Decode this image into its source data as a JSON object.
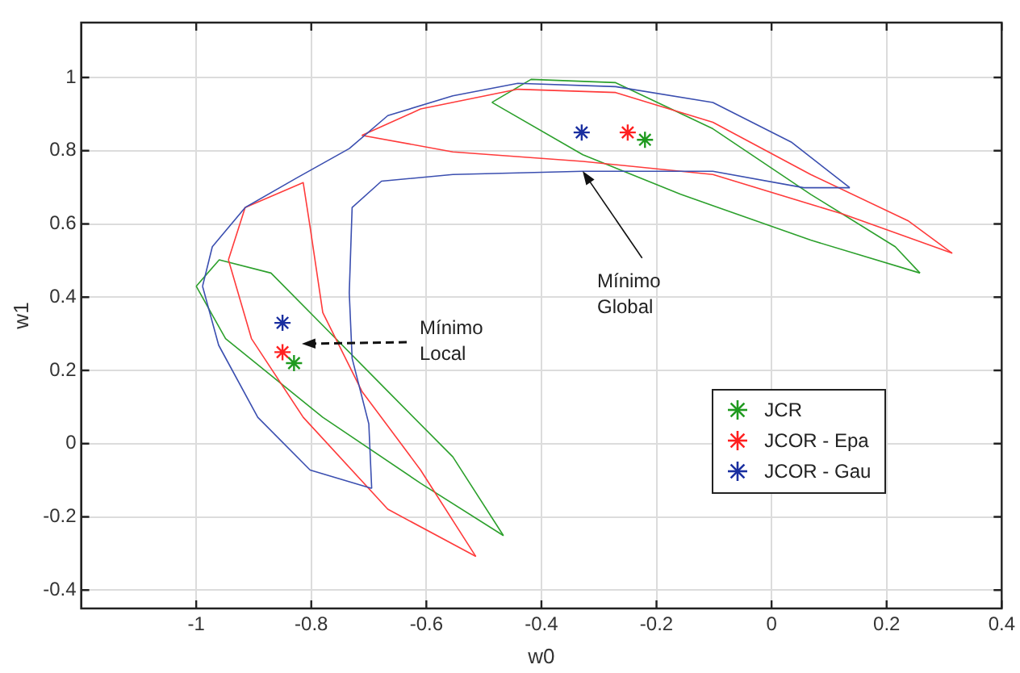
{
  "chart_data": {
    "type": "scatter",
    "xlabel": "w0",
    "ylabel": "w1",
    "xlim": [
      -1.2,
      0.4
    ],
    "ylim": [
      -0.45,
      1.15
    ],
    "xticks": [
      -1,
      -0.8,
      -0.6,
      -0.4,
      -0.2,
      0,
      0.2,
      0.4
    ],
    "yticks": [
      -0.4,
      -0.2,
      0,
      0.2,
      0.4,
      0.6,
      0.8,
      1
    ],
    "grid": true,
    "legend": "right",
    "marker": "cross",
    "series": [
      {
        "type": "line",
        "color": "#3b4fb0",
        "marker": "none",
        "x": [
          -0.989,
          -0.961,
          -0.893,
          -0.802,
          -0.695
        ],
        "values": [
          0.43,
          0.269,
          0.072,
          -0.072,
          -0.122
        ]
      },
      {
        "type": "line",
        "color": "#3b4fb0",
        "marker": "none",
        "x": [
          -0.989,
          -0.972,
          -0.915,
          -0.825,
          -0.734,
          -0.667,
          -0.554,
          -0.441,
          -0.271,
          -0.102,
          0.034,
          0.136
        ],
        "values": [
          0.43,
          0.538,
          0.645,
          0.726,
          0.806,
          0.896,
          0.95,
          0.984,
          0.975,
          0.932,
          0.824,
          0.699
        ]
      },
      {
        "type": "line",
        "color": "#3b4fb0",
        "marker": "none",
        "x": [
          0.136,
          0.056,
          -0.102,
          -0.328,
          -0.554,
          -0.678,
          -0.729,
          -0.734,
          -0.729,
          -0.7,
          -0.695
        ],
        "values": [
          0.699,
          0.699,
          0.744,
          0.744,
          0.735,
          0.717,
          0.645,
          0.412,
          0.233,
          0.054,
          -0.122
        ]
      },
      {
        "type": "line",
        "color": "#ff3b3b",
        "marker": "none",
        "x": [
          -0.944,
          -0.904,
          -0.814,
          -0.667,
          -0.514
        ],
        "values": [
          0.502,
          0.287,
          0.072,
          -0.179,
          -0.308
        ]
      },
      {
        "type": "line",
        "color": "#ff3b3b",
        "marker": "none",
        "x": [
          -0.944,
          -0.915,
          -0.814,
          -0.802,
          -0.78,
          -0.712,
          -0.61,
          -0.514
        ],
        "values": [
          0.502,
          0.645,
          0.713,
          0.591,
          0.358,
          0.143,
          -0.072,
          -0.308
        ]
      },
      {
        "type": "line",
        "color": "#ff3b3b",
        "marker": "none",
        "x": [
          -0.712,
          -0.554,
          -0.328,
          -0.102,
          0.124,
          0.314
        ],
        "values": [
          0.842,
          0.797,
          0.771,
          0.735,
          0.627,
          0.52
        ]
      },
      {
        "type": "line",
        "color": "#ff3b3b",
        "marker": "none",
        "x": [
          -0.712,
          -0.61,
          -0.441,
          -0.271,
          -0.102,
          0.068,
          0.237,
          0.314
        ],
        "values": [
          0.842,
          0.914,
          0.968,
          0.959,
          0.878,
          0.735,
          0.609,
          0.52
        ]
      },
      {
        "type": "line",
        "color": "#2ca02c",
        "marker": "none",
        "x": [
          -1.0,
          -0.949,
          -0.78,
          -0.61,
          -0.466
        ],
        "values": [
          0.43,
          0.287,
          0.072,
          -0.108,
          -0.251
        ]
      },
      {
        "type": "line",
        "color": "#2ca02c",
        "marker": "none",
        "x": [
          -1.0,
          -0.96,
          -0.87,
          -0.78,
          -0.667,
          -0.554,
          -0.466
        ],
        "values": [
          0.43,
          0.502,
          0.466,
          0.323,
          0.143,
          -0.036,
          -0.251
        ]
      },
      {
        "type": "line",
        "color": "#2ca02c",
        "marker": "none",
        "x": [
          -0.486,
          -0.328,
          -0.158,
          0.068,
          0.258
        ],
        "values": [
          0.932,
          0.789,
          0.681,
          0.556,
          0.466
        ]
      },
      {
        "type": "line",
        "color": "#2ca02c",
        "marker": "none",
        "x": [
          -0.486,
          -0.418,
          -0.271,
          -0.102,
          0.068,
          0.215,
          0.258
        ],
        "values": [
          0.932,
          0.995,
          0.986,
          0.86,
          0.681,
          0.538,
          0.466
        ]
      },
      {
        "name": "JCR",
        "color": "#1f9a1f",
        "x": [
          -0.22,
          -0.83
        ],
        "values": [
          0.83,
          0.22
        ]
      },
      {
        "name": "JCOR - Epa",
        "color": "#ff2020",
        "x": [
          -0.25,
          -0.85
        ],
        "values": [
          0.85,
          0.25
        ]
      },
      {
        "name": "JCOR - Gau",
        "color": "#1a2fa0",
        "x": [
          -0.33,
          -0.85
        ],
        "values": [
          0.85,
          0.33
        ]
      }
    ],
    "annotations": [
      "Mínimo\nLocal",
      {
        "text": "Mínimo\nGlobal",
        "x": -0.328,
        "y": 0.744
      }
    ]
  }
}
